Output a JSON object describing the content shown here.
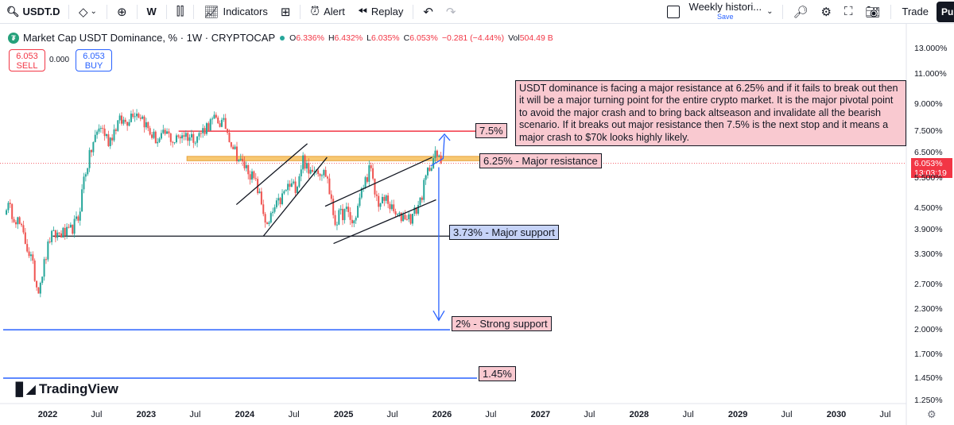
{
  "toolbar": {
    "symbol": "USDT.D",
    "interval": "W",
    "indicators_label": "Indicators",
    "alert_label": "Alert",
    "replay_label": "Replay",
    "layout_title": "Weekly histori...",
    "layout_save": "Save",
    "trade_label": "Trade",
    "publish_label": "Pu"
  },
  "legend": {
    "title": "Market Cap USDT Dominance, % · 1W · CRYPTOCAP",
    "open_label": "O",
    "open": "6.336%",
    "high_label": "H",
    "high": "6.432%",
    "low_label": "L",
    "low": "6.035%",
    "close_label": "C",
    "close": "6.053%",
    "change": "−0.281 (−4.44%)",
    "vol_label": "Vol",
    "vol": "504.49 B"
  },
  "trade": {
    "sell_price": "6.053",
    "sell_label": "SELL",
    "spread": "0.000",
    "buy_price": "6.053",
    "buy_label": "BUY"
  },
  "price_badge": {
    "price": "6.053%",
    "countdown": "13:03:19"
  },
  "brand": {
    "name": "TradingView"
  },
  "annotations": {
    "big_note": "USDT dominance is facing a major resistance at 6.25% and if it fails to break out then it will be a major turning point for the entire crypto market. It is the major pivotal point to avoid the major crash and to bring back altseason and invalidate all the bearish scenario. If it breaks out major resistance then 7.5% is the next stop and it means a major crash to $70k looks highly likely.",
    "target": "7.5%",
    "resistance": "6.25% - Major resistance",
    "support": "3.73% - Major support",
    "strong_support": "2% - Strong support",
    "bottom": "1.45%"
  },
  "colors": {
    "up": "#26a69a",
    "down": "#ef5350",
    "resistance_zone": "#f7c873",
    "annotation_red": "#f23645",
    "annotation_blue": "#2962ff"
  },
  "chart_data": {
    "type": "candlestick",
    "title": "Market Cap USDT Dominance, % · 1W · CRYPTOCAP",
    "scale": "log",
    "ylim": [
      1.25,
      13.0
    ],
    "y_ticks": [
      "13.000%",
      "11.000%",
      "9.000%",
      "7.500%",
      "6.500%",
      "5.500%",
      "4.500%",
      "3.900%",
      "3.300%",
      "2.700%",
      "2.300%",
      "2.000%",
      "1.700%",
      "1.450%",
      "1.250%"
    ],
    "x_ticks": [
      "2022",
      "Jul",
      "2023",
      "Jul",
      "2024",
      "Jul",
      "2025",
      "Jul",
      "2026",
      "Jul",
      "2027",
      "Jul",
      "2028",
      "Jul",
      "2029",
      "Jul",
      "2030",
      "Jul"
    ],
    "x_tick_dates": [
      "2022-01-01",
      "2022-07-01",
      "2023-01-01",
      "2023-07-01",
      "2024-01-01",
      "2024-07-01",
      "2025-01-01",
      "2025-07-01",
      "2026-01-01",
      "2026-07-01",
      "2027-01-01",
      "2027-07-01",
      "2028-01-01",
      "2028-07-01",
      "2029-01-01",
      "2029-07-01",
      "2030-01-01",
      "2030-07-01"
    ],
    "levels": [
      {
        "label": "7.5%",
        "value": 7.5
      },
      {
        "label": "6.25% - Major resistance",
        "value": 6.25
      },
      {
        "label": "3.73% - Major support",
        "value": 3.73
      },
      {
        "label": "2% - Strong support",
        "value": 2.0
      },
      {
        "label": "1.45%",
        "value": 1.45
      }
    ],
    "last_price": 6.053,
    "series": [
      {
        "date": "2021-08-01",
        "close": 4.6
      },
      {
        "date": "2021-09-15",
        "close": 4.1
      },
      {
        "date": "2021-11-01",
        "close": 3.2
      },
      {
        "date": "2021-11-25",
        "close": 2.6
      },
      {
        "date": "2021-12-15",
        "close": 3.0
      },
      {
        "date": "2022-01-10",
        "close": 3.7
      },
      {
        "date": "2022-02-15",
        "close": 3.8
      },
      {
        "date": "2022-03-20",
        "close": 3.8
      },
      {
        "date": "2022-04-25",
        "close": 4.2
      },
      {
        "date": "2022-05-15",
        "close": 5.5
      },
      {
        "date": "2022-06-20",
        "close": 7.0
      },
      {
        "date": "2022-07-15",
        "close": 7.8
      },
      {
        "date": "2022-08-15",
        "close": 7.0
      },
      {
        "date": "2022-09-20",
        "close": 8.0
      },
      {
        "date": "2022-10-20",
        "close": 8.0
      },
      {
        "date": "2022-11-15",
        "close": 8.6
      },
      {
        "date": "2022-12-15",
        "close": 8.3
      },
      {
        "date": "2023-01-15",
        "close": 7.4
      },
      {
        "date": "2023-02-15",
        "close": 7.0
      },
      {
        "date": "2023-03-15",
        "close": 7.4
      },
      {
        "date": "2023-04-15",
        "close": 7.0
      },
      {
        "date": "2023-05-15",
        "close": 7.4
      },
      {
        "date": "2023-06-15",
        "close": 7.2
      },
      {
        "date": "2023-07-15",
        "close": 7.3
      },
      {
        "date": "2023-08-15",
        "close": 7.8
      },
      {
        "date": "2023-09-15",
        "close": 8.1
      },
      {
        "date": "2023-10-20",
        "close": 7.8
      },
      {
        "date": "2023-11-15",
        "close": 6.9
      },
      {
        "date": "2023-12-15",
        "close": 6.1
      },
      {
        "date": "2024-01-15",
        "close": 5.8
      },
      {
        "date": "2024-02-15",
        "close": 5.2
      },
      {
        "date": "2024-03-10",
        "close": 4.4
      },
      {
        "date": "2024-03-25",
        "close": 3.9
      },
      {
        "date": "2024-04-15",
        "close": 4.4
      },
      {
        "date": "2024-05-10",
        "close": 4.7
      },
      {
        "date": "2024-06-10",
        "close": 5.2
      },
      {
        "date": "2024-07-10",
        "close": 5.2
      },
      {
        "date": "2024-08-05",
        "close": 6.3
      },
      {
        "date": "2024-08-25",
        "close": 5.6
      },
      {
        "date": "2024-09-10",
        "close": 6.0
      },
      {
        "date": "2024-10-01",
        "close": 5.8
      },
      {
        "date": "2024-11-01",
        "close": 5.6
      },
      {
        "date": "2024-11-15",
        "close": 4.7
      },
      {
        "date": "2024-12-01",
        "close": 4.1
      },
      {
        "date": "2024-12-20",
        "close": 4.3
      },
      {
        "date": "2025-01-15",
        "close": 4.4
      },
      {
        "date": "2025-02-05",
        "close": 4.0
      },
      {
        "date": "2025-02-25",
        "close": 4.6
      },
      {
        "date": "2025-03-15",
        "close": 5.2
      },
      {
        "date": "2025-04-10",
        "close": 5.9
      },
      {
        "date": "2025-04-25",
        "close": 5.0
      },
      {
        "date": "2025-05-15",
        "close": 4.6
      },
      {
        "date": "2025-06-10",
        "close": 4.8
      },
      {
        "date": "2025-07-01",
        "close": 4.4
      },
      {
        "date": "2025-07-25",
        "close": 4.2
      },
      {
        "date": "2025-08-15",
        "close": 4.3
      },
      {
        "date": "2025-09-05",
        "close": 4.2
      },
      {
        "date": "2025-09-25",
        "close": 4.4
      },
      {
        "date": "2025-10-15",
        "close": 4.8
      },
      {
        "date": "2025-11-05",
        "close": 5.6
      },
      {
        "date": "2025-11-25",
        "close": 6.2
      },
      {
        "date": "2025-12-10",
        "close": 6.4
      },
      {
        "date": "2025-12-28",
        "close": 6.053
      }
    ]
  }
}
